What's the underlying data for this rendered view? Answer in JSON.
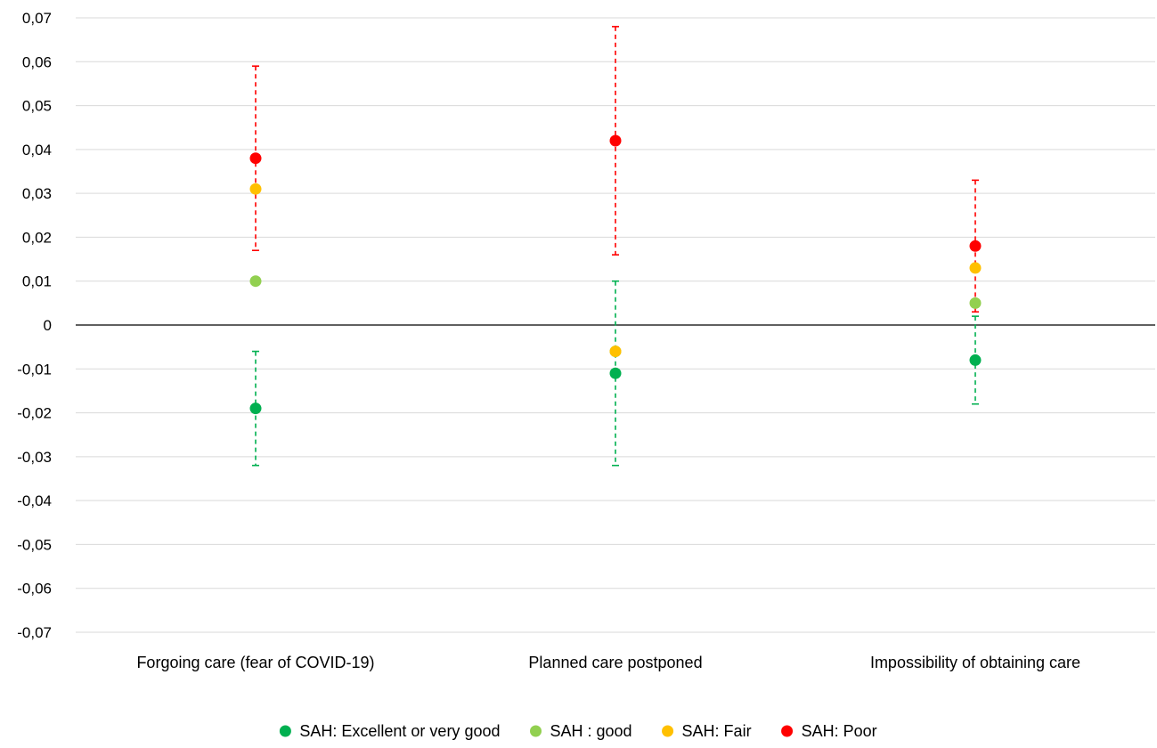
{
  "chart_data": {
    "type": "scatter",
    "title": "",
    "xlabel": "",
    "ylabel": "",
    "ylim": [
      -0.07,
      0.07
    ],
    "y_ticks": [
      0.07,
      0.06,
      0.05,
      0.04,
      0.03,
      0.02,
      0.01,
      0,
      -0.01,
      -0.02,
      -0.03,
      -0.04,
      -0.05,
      -0.06,
      -0.07
    ],
    "y_tick_labels": [
      "0,07",
      "0,06",
      "0,05",
      "0,04",
      "0,03",
      "0,02",
      "0,01",
      "0",
      "-0,01",
      "-0,02",
      "-0,03",
      "-0,04",
      "-0,05",
      "-0,06",
      "-0,07"
    ],
    "grid": true,
    "legend_position": "bottom",
    "categories": [
      "Forgoing care (fear of COVID-19)",
      "Planned care postponed",
      "Impossibility of obtaining care"
    ],
    "series": [
      {
        "name": "SAH: Excellent or very good",
        "color": "#00b050",
        "values": [
          -0.019,
          -0.011,
          -0.008
        ],
        "error_low": [
          -0.032,
          -0.032,
          -0.018
        ],
        "error_high": [
          -0.006,
          0.01,
          0.002
        ]
      },
      {
        "name": "SAH : good",
        "color": "#92d050",
        "values": [
          0.01,
          -0.006,
          0.005
        ]
      },
      {
        "name": "SAH: Fair",
        "color": "#ffc000",
        "values": [
          0.031,
          -0.006,
          0.013
        ]
      },
      {
        "name": "SAH: Poor",
        "color": "#ff0000",
        "values": [
          0.038,
          0.042,
          0.018
        ],
        "error_low": [
          0.017,
          0.016,
          0.003
        ],
        "error_high": [
          0.059,
          0.068,
          0.033
        ]
      }
    ]
  }
}
